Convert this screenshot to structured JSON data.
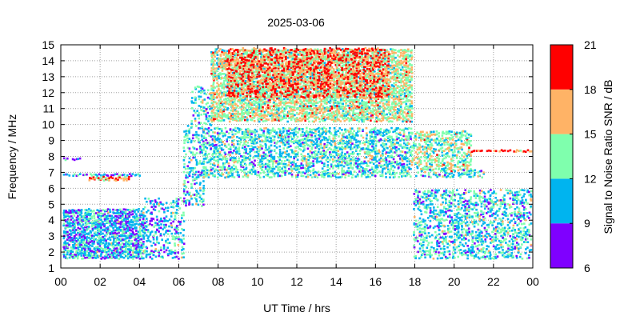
{
  "chart_data": {
    "type": "heatmap",
    "title": "2025-03-06",
    "xlabel": "UT Time / hrs",
    "ylabel": "Frequency / MHz",
    "xlim": [
      0,
      24
    ],
    "ylim": [
      1,
      15
    ],
    "x_ticks": [
      "00",
      "02",
      "04",
      "06",
      "08",
      "10",
      "12",
      "14",
      "16",
      "18",
      "20",
      "22",
      "00"
    ],
    "y_ticks": [
      "1",
      "2",
      "3",
      "4",
      "5",
      "6",
      "7",
      "8",
      "9",
      "10",
      "11",
      "12",
      "13",
      "14",
      "15"
    ],
    "grid": true,
    "colorbar": {
      "label": "Signal to Noise Ratio SNR / dB",
      "range": [
        6,
        21
      ],
      "ticks": [
        "6",
        "9",
        "12",
        "15",
        "18",
        "21"
      ],
      "bands": [
        {
          "min": 6,
          "max": 9,
          "color": "#7f00ff"
        },
        {
          "min": 9,
          "max": 12,
          "color": "#00b4ef"
        },
        {
          "min": 12,
          "max": 15,
          "color": "#7fffad"
        },
        {
          "min": 15,
          "max": 18,
          "color": "#ffb366"
        },
        {
          "min": 18,
          "max": 21,
          "color": "#ff0000"
        }
      ]
    },
    "regions": [
      {
        "t0": 0.0,
        "t1": 4.2,
        "f0": 1.7,
        "f1": 4.8,
        "density": 0.8,
        "snr": 10.5
      },
      {
        "t0": 4.2,
        "t1": 6.2,
        "f0": 1.7,
        "f1": 5.5,
        "density": 0.35,
        "snr": 10.5
      },
      {
        "t0": 0.0,
        "t1": 4.0,
        "f0": 6.9,
        "f1": 7.0,
        "density": 0.9,
        "snr": 10
      },
      {
        "t0": 1.4,
        "t1": 3.4,
        "f0": 6.6,
        "f1": 6.8,
        "density": 0.9,
        "snr": 18
      },
      {
        "t0": 0.0,
        "t1": 0.9,
        "f0": 7.9,
        "f1": 8.0,
        "density": 0.8,
        "snr": 10
      },
      {
        "t0": 6.2,
        "t1": 7.2,
        "f0": 5.0,
        "f1": 10.0,
        "density": 0.35,
        "snr": 11
      },
      {
        "t0": 6.6,
        "t1": 7.6,
        "f0": 10.0,
        "f1": 12.5,
        "density": 0.35,
        "snr": 12
      },
      {
        "t0": 7.2,
        "t1": 17.8,
        "f0": 6.8,
        "f1": 9.8,
        "density": 0.55,
        "snr": 12
      },
      {
        "t0": 7.6,
        "t1": 17.8,
        "f0": 10.3,
        "f1": 14.8,
        "density": 0.75,
        "snr": 14.5
      },
      {
        "t0": 8.4,
        "t1": 16.6,
        "f0": 11.8,
        "f1": 14.8,
        "density": 0.45,
        "snr": 18.5
      },
      {
        "t0": 17.8,
        "t1": 20.8,
        "f0": 7.2,
        "f1": 9.6,
        "density": 0.55,
        "snr": 14
      },
      {
        "t0": 20.8,
        "t1": 24.0,
        "f0": 8.4,
        "f1": 8.5,
        "density": 0.9,
        "snr": 19
      },
      {
        "t0": 17.9,
        "t1": 24.0,
        "f0": 1.7,
        "f1": 6.0,
        "density": 0.45,
        "snr": 11.5
      },
      {
        "t0": 18.0,
        "t1": 21.5,
        "f0": 6.8,
        "f1": 7.2,
        "density": 0.4,
        "snr": 12
      }
    ]
  }
}
